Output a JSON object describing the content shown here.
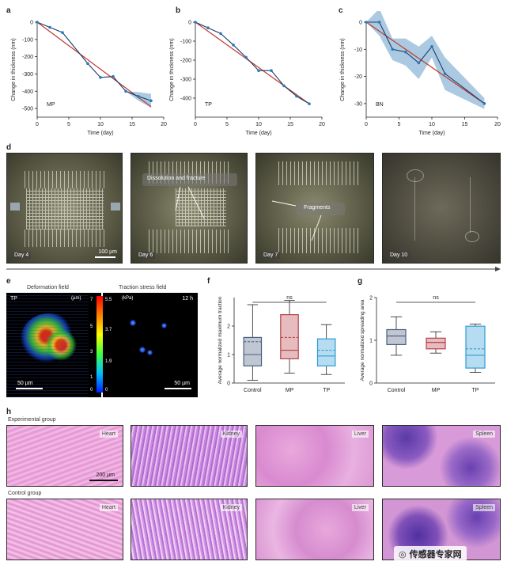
{
  "panels": {
    "a": "a",
    "b": "b",
    "c": "c",
    "d": "d",
    "e": "e",
    "f": "f",
    "g": "g",
    "h": "h"
  },
  "chart_data": [
    {
      "type": "line",
      "panel": "a",
      "inset_label": "MP",
      "xlabel": "Time (day)",
      "ylabel": "Change in thickness (nm)",
      "xlim": [
        0,
        20
      ],
      "ylim": [
        -550,
        0
      ],
      "xticks": [
        0,
        5,
        10,
        15,
        20
      ],
      "yticks": [
        0,
        -100,
        -200,
        -300,
        -400,
        -500
      ],
      "x": [
        0,
        2,
        4,
        8,
        10,
        12,
        14,
        16,
        18
      ],
      "y": [
        0,
        -30,
        -60,
        -240,
        -320,
        -315,
        -400,
        -430,
        -455
      ],
      "band": [
        0,
        0,
        0,
        0,
        0,
        0,
        0,
        25,
        40
      ],
      "fit": [
        [
          0,
          0
        ],
        [
          18,
          -490
        ]
      ],
      "colors": {
        "line": "#2a7ab8",
        "fit": "#c0392b",
        "band": "#8fb8d8"
      }
    },
    {
      "type": "line",
      "panel": "b",
      "inset_label": "TP",
      "xlabel": "Time (day)",
      "ylabel": "Change in thickness (nm)",
      "xlim": [
        0,
        20
      ],
      "ylim": [
        -500,
        0
      ],
      "xticks": [
        0,
        5,
        10,
        15,
        20
      ],
      "yticks": [
        0,
        -100,
        -200,
        -300,
        -400
      ],
      "x": [
        0,
        2,
        4,
        6,
        8,
        10,
        12,
        14,
        16,
        18
      ],
      "y": [
        0,
        -30,
        -60,
        -120,
        -185,
        -255,
        -255,
        -335,
        -390,
        -430
      ],
      "band": [
        0,
        0,
        0,
        0,
        0,
        0,
        0,
        0,
        0,
        0
      ],
      "fit": [
        [
          0,
          0
        ],
        [
          18,
          -430
        ]
      ],
      "colors": {
        "line": "#2a7ab8",
        "fit": "#c0392b",
        "band": "#8fb8d8"
      }
    },
    {
      "type": "line",
      "panel": "c",
      "inset_label": "BN",
      "xlabel": "Time (day)",
      "ylabel": "Change in thickness (nm)",
      "xlim": [
        0,
        20
      ],
      "ylim": [
        -35,
        0
      ],
      "xticks": [
        0,
        5,
        10,
        15,
        20
      ],
      "yticks": [
        0,
        -10,
        -20,
        -30
      ],
      "x": [
        0,
        2,
        4,
        6,
        8,
        10,
        12,
        18
      ],
      "y": [
        0,
        0,
        -10,
        -11,
        -15,
        -9,
        -19,
        -30
      ],
      "band": [
        0,
        5,
        4,
        5,
        6,
        4,
        6,
        2
      ],
      "fit": [
        [
          0,
          0
        ],
        [
          18,
          -30
        ]
      ],
      "colors": {
        "line": "#2a7ab8",
        "fit": "#c0392b",
        "band": "#8fb8d8"
      }
    },
    {
      "type": "box",
      "panel": "f",
      "ylabel": "Average normalized maximum traction",
      "ylim": [
        0,
        3
      ],
      "yticks": [
        0,
        1,
        2
      ],
      "categories": [
        "Control",
        "MP",
        "TP"
      ],
      "boxes": [
        {
          "min": 0.1,
          "q1": 0.6,
          "median": 1.0,
          "mean": 1.45,
          "q3": 1.6,
          "max": 2.75
        },
        {
          "min": 0.35,
          "q1": 0.85,
          "median": 1.15,
          "mean": 1.6,
          "q3": 2.4,
          "max": 2.9
        },
        {
          "min": 0.3,
          "q1": 0.6,
          "median": 0.95,
          "mean": 1.15,
          "q3": 1.55,
          "max": 2.05
        }
      ],
      "annotation": "ns",
      "colors": {
        "Control": "#4a5f7e",
        "MP": "#b84048",
        "TP": "#2e9bd6"
      }
    },
    {
      "type": "box",
      "panel": "g",
      "ylabel": "Average normalized spreading area",
      "ylim": [
        0,
        2
      ],
      "yticks": [
        0,
        1,
        2
      ],
      "categories": [
        "Control",
        "MP",
        "TP"
      ],
      "boxes": [
        {
          "min": 0.65,
          "q1": 0.9,
          "median": 1.1,
          "mean": 1.1,
          "q3": 1.25,
          "max": 1.55
        },
        {
          "min": 0.7,
          "q1": 0.8,
          "median": 0.95,
          "mean": 0.95,
          "q3": 1.05,
          "max": 1.2
        },
        {
          "min": 0.25,
          "q1": 0.35,
          "median": 0.65,
          "mean": 0.8,
          "q3": 1.33,
          "max": 1.38
        }
      ],
      "annotation": "ns",
      "colors": {
        "Control": "#4a5f7e",
        "MP": "#b84048",
        "TP": "#2e9bd6"
      }
    }
  ],
  "panel_d": {
    "photos": [
      {
        "day": "Day 4",
        "scale": "100 µm"
      },
      {
        "day": "Day 6",
        "annotation": "Dissolution and fracture"
      },
      {
        "day": "Day 7",
        "annotation": "Fragments"
      },
      {
        "day": "Day 10"
      }
    ]
  },
  "panel_e": {
    "left_title": "Deformation field",
    "right_title": "Traction stress field",
    "left_tag": "TP",
    "right_tag": "12 h",
    "left_unit": "(µm)",
    "right_unit": "(kPa)",
    "left_ticks": [
      "7",
      "5",
      "3",
      "1",
      "0"
    ],
    "right_ticks": [
      "5.5",
      "3.7",
      "1.9",
      "0"
    ],
    "scale": "50 µm"
  },
  "panel_h": {
    "group1": "Experimental group",
    "group2": "Control group",
    "organs": [
      "Heart",
      "Kidney",
      "Liver",
      "Spleen"
    ],
    "scale": "200 µm"
  },
  "watermark": "传感器专家网"
}
